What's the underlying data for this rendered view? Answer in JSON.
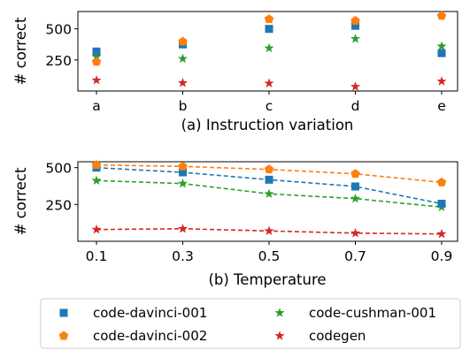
{
  "chart_data": [
    {
      "type": "scatter",
      "caption": "(a) Instruction variation",
      "xlabel": "",
      "ylabel": "# correct",
      "categories": [
        "a",
        "b",
        "c",
        "d",
        "e"
      ],
      "ylim": [
        0,
        640
      ],
      "yticks": [
        250,
        500
      ],
      "series": [
        {
          "name": "code-davinci-001",
          "values": [
            318,
            375,
            500,
            525,
            305
          ]
        },
        {
          "name": "code-davinci-002",
          "values": [
            235,
            398,
            578,
            565,
            605
          ]
        },
        {
          "name": "code-cushman-001",
          "values": [
            275,
            260,
            345,
            420,
            360
          ]
        },
        {
          "name": "codegen",
          "values": [
            87,
            65,
            62,
            35,
            78
          ]
        }
      ]
    },
    {
      "type": "line",
      "caption": "(b) Temperature",
      "xlabel": "",
      "ylabel": "# correct",
      "categories": [
        "0.1",
        "0.3",
        "0.5",
        "0.7",
        "0.9"
      ],
      "ylim": [
        0,
        540
      ],
      "yticks": [
        250,
        500
      ],
      "series": [
        {
          "name": "code-davinci-001",
          "values": [
            500,
            468,
            418,
            372,
            255
          ]
        },
        {
          "name": "code-davinci-002",
          "values": [
            518,
            508,
            488,
            458,
            400
          ]
        },
        {
          "name": "code-cushman-001",
          "values": [
            412,
            392,
            322,
            290,
            232
          ]
        },
        {
          "name": "codegen",
          "values": [
            80,
            85,
            70,
            55,
            50
          ]
        }
      ]
    }
  ],
  "legend": [
    {
      "label": "code-davinci-001",
      "color": "#1f77b4",
      "marker": "square"
    },
    {
      "label": "code-davinci-002",
      "color": "#ff7f0e",
      "marker": "pentagon"
    },
    {
      "label": "code-cushman-001",
      "color": "#2ca02c",
      "marker": "star"
    },
    {
      "label": "codegen",
      "color": "#d62728",
      "marker": "star"
    }
  ]
}
